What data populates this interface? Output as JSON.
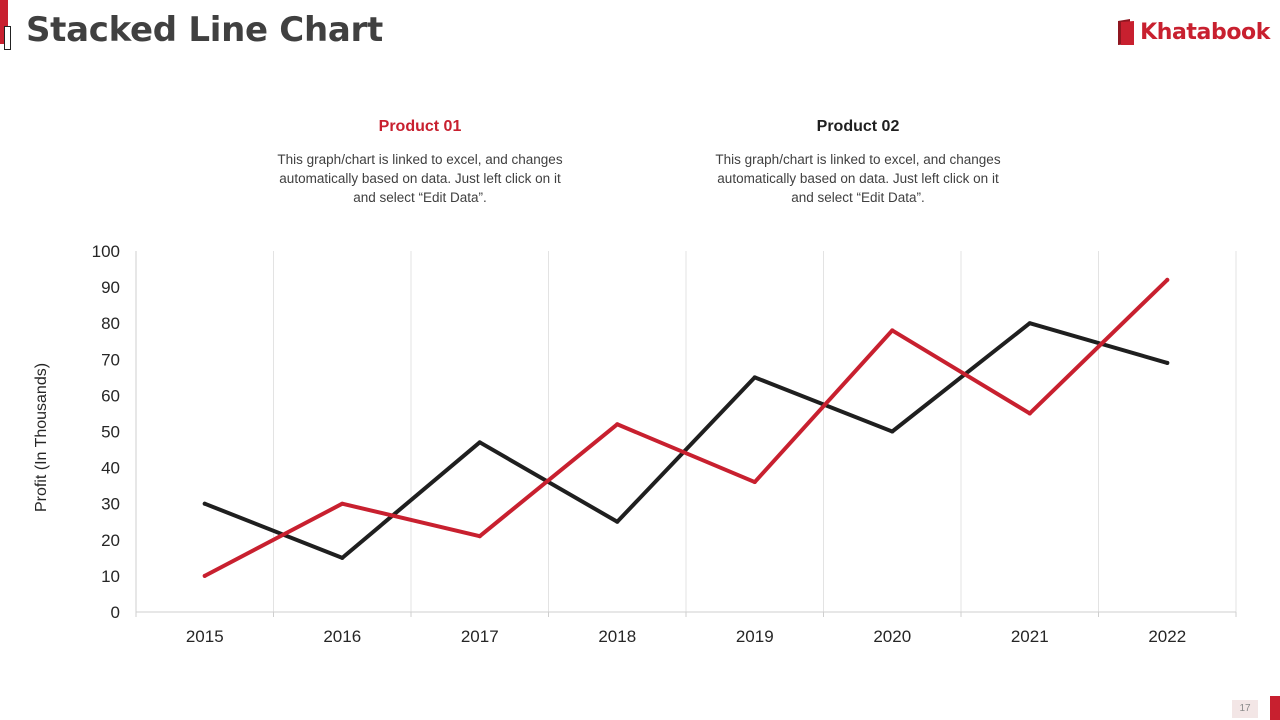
{
  "page": {
    "title": "Stacked Line Chart",
    "page_number": "17",
    "brand_color": "#c8202f",
    "dark_color": "#1f1f1f"
  },
  "logo": {
    "text": "Khatabook",
    "icon": "book-icon"
  },
  "products": [
    {
      "heading": "Product 01",
      "description": "This graph/chart is linked to excel, and changes automatically based on data. Just left click on it and select “Edit Data”.",
      "color": "#c8202f"
    },
    {
      "heading": "Product 02",
      "description": "This graph/chart is linked to excel, and changes automatically based on data. Just left click on it and select “Edit Data”.",
      "color": "#1f1f1f"
    }
  ],
  "chart_data": {
    "type": "line",
    "title": "Stacked Line Chart",
    "xlabel": "",
    "ylabel": "Profit (In Thousands)",
    "categories": [
      "2015",
      "2016",
      "2017",
      "2018",
      "2019",
      "2020",
      "2021",
      "2022"
    ],
    "ylim": [
      0,
      100
    ],
    "yticks": [
      0,
      10,
      20,
      30,
      40,
      50,
      60,
      70,
      80,
      90,
      100
    ],
    "grid": "vertical",
    "series": [
      {
        "name": "Product 01",
        "color": "#c8202f",
        "values": [
          10,
          30,
          21,
          52,
          36,
          78,
          55,
          92
        ]
      },
      {
        "name": "Product 02",
        "color": "#1f1f1f",
        "values": [
          30,
          15,
          47,
          25,
          65,
          50,
          80,
          69
        ]
      }
    ]
  }
}
